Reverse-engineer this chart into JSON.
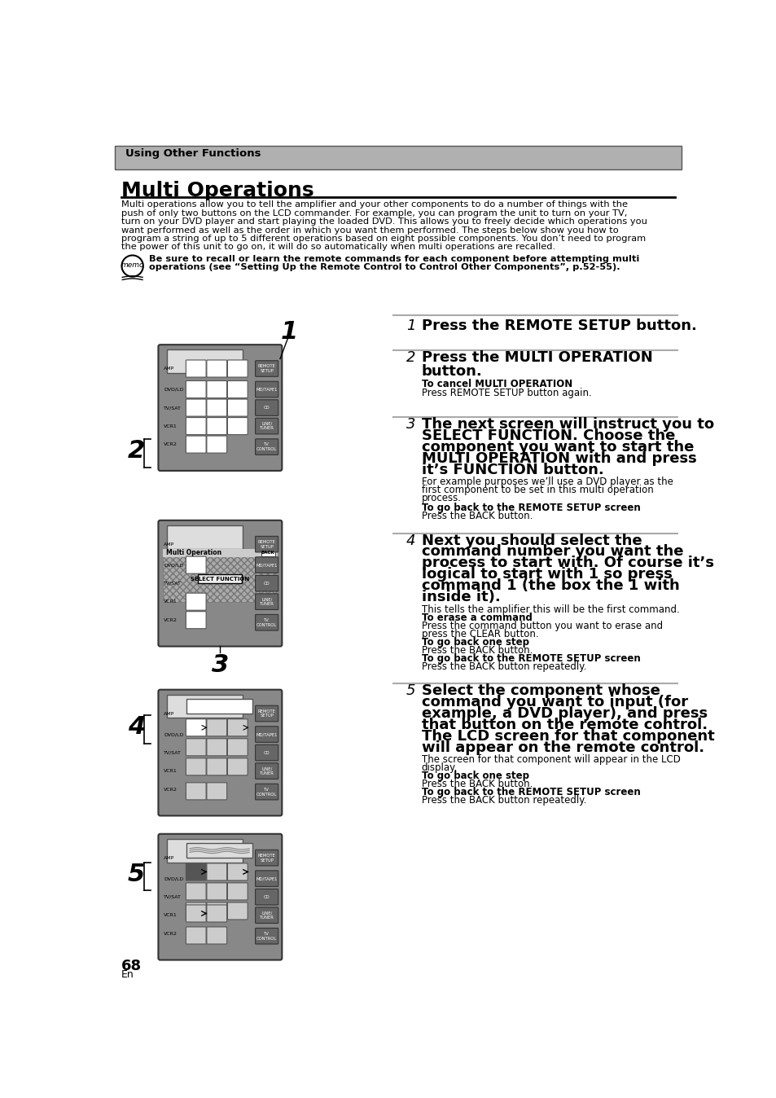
{
  "page_bg": "#ffffff",
  "header_bg": "#b0b0b0",
  "header_text": "Using Other Functions",
  "title": "Multi Operations",
  "intro_lines": [
    "Multi operations allow you to tell the amplifier and your other components to do a number of things with the",
    "push of only two buttons on the LCD commander. For example, you can program the unit to turn on your TV,",
    "turn on your DVD player and start playing the loaded DVD. This allows you to freely decide which operations you",
    "want performed as well as the order in which you want them performed. The steps below show you how to",
    "program a string of up to 5 different operations based on eight possible components. You don’t need to program",
    "the power of this unit to go on, it will do so automatically when multi operations are recalled."
  ],
  "memo_text_line1": "Be sure to recall or learn the remote commands for each component before attempting multi",
  "memo_text_line2": "operations (see “Setting Up the Remote Control to Control Other Components”, p.52-55).",
  "step1_bold": "Press the REMOTE SETUP button.",
  "step2_bold_line1": "Press the MULTI OPERATION",
  "step2_bold_line2": "button.",
  "step2_sub_bold": "To cancel MULTI OPERATION",
  "step2_sub": "Press REMOTE SETUP button again.",
  "step3_bold_lines": [
    "The next screen will instruct you to",
    "SELECT FUNCTION. Choose the",
    "component you want to start the",
    "MULTI OPERATION with and press",
    "it’s FUNCTION button."
  ],
  "step3_sub_lines": [
    "For example purposes we’ll use a DVD player as the",
    "first component to be set in this multi operation",
    "process."
  ],
  "step3_sub_bold": "To go back to the REMOTE SETUP screen",
  "step3_sub2": "Press the BACK button.",
  "step4_bold_lines": [
    "Next you should select the",
    "command number you want the",
    "process to start with. Of course it’s",
    "logical to start with 1 so press",
    "command 1 (the box the 1 with",
    "inside it)."
  ],
  "step4_sub1": "This tells the amplifier this will be the first command.",
  "step4_sub_bold1": "To erase a command",
  "step4_sub2a": "Press the command button you want to erase and",
  "step4_sub2b": "press the CLEAR button.",
  "step4_sub_bold2": "To go back one step",
  "step4_sub3": "Press the BACK button.",
  "step4_sub_bold3": "To go back to the REMOTE SETUP screen",
  "step4_sub4": "Press the BACK button repeatedly.",
  "step5_bold_lines": [
    "Select the component whose",
    "command you want to input (for",
    "example, a DVD player), and press",
    "that button on the remote control.",
    "The LCD screen for that component",
    "will appear on the remote control."
  ],
  "step5_sub1a": "The screen for that component will appear in the LCD",
  "step5_sub1b": "display.",
  "step5_sub_bold1": "To go back one step",
  "step5_sub2": "Press the BACK button.",
  "step5_sub_bold2": "To go back to the REMOTE SETUP screen",
  "step5_sub3": "Press the BACK button repeatedly.",
  "footer_num": "68",
  "footer_en": "En"
}
